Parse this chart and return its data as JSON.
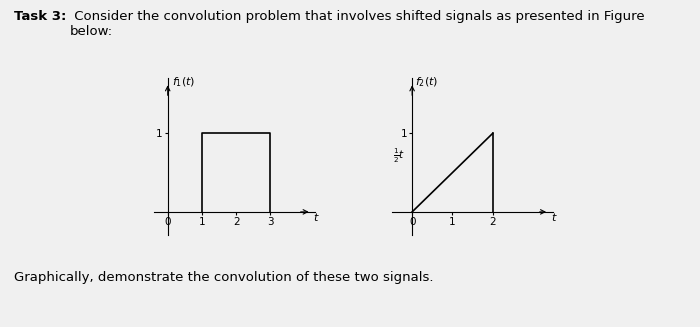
{
  "title_bold": "Task 3:",
  "title_normal": " Consider the convolution problem that involves shifted signals as presented in Figure\nbelow:",
  "subtitle_text": "Graphically, demonstrate the convolution of these two signals.",
  "background_color": "#f0f0f0",
  "plot_bg": "#f0f0f0",
  "fig1_label": "$f_1(t)$",
  "fig1_xticks": [
    0,
    1,
    2,
    3
  ],
  "fig1_xtick_labels": [
    "0",
    "1",
    "2",
    "3"
  ],
  "fig1_yticks": [
    1
  ],
  "fig1_ytick_labels": [
    "1"
  ],
  "fig1_xlim": [
    -0.4,
    4.3
  ],
  "fig1_ylim": [
    -0.3,
    1.7
  ],
  "fig1_xlabel": "t",
  "fig2_label": "$f_2(t)$",
  "fig2_xticks": [
    0,
    1,
    2
  ],
  "fig2_xtick_labels": [
    "0",
    "1",
    "2"
  ],
  "fig2_yticks": [
    1
  ],
  "fig2_ytick_labels": [
    "1"
  ],
  "fig2_xlim": [
    -0.5,
    3.5
  ],
  "fig2_ylim": [
    -0.3,
    1.7
  ],
  "fig2_xlabel": "t",
  "fig2_slope_label": "$\\frac{1}{2}t$"
}
